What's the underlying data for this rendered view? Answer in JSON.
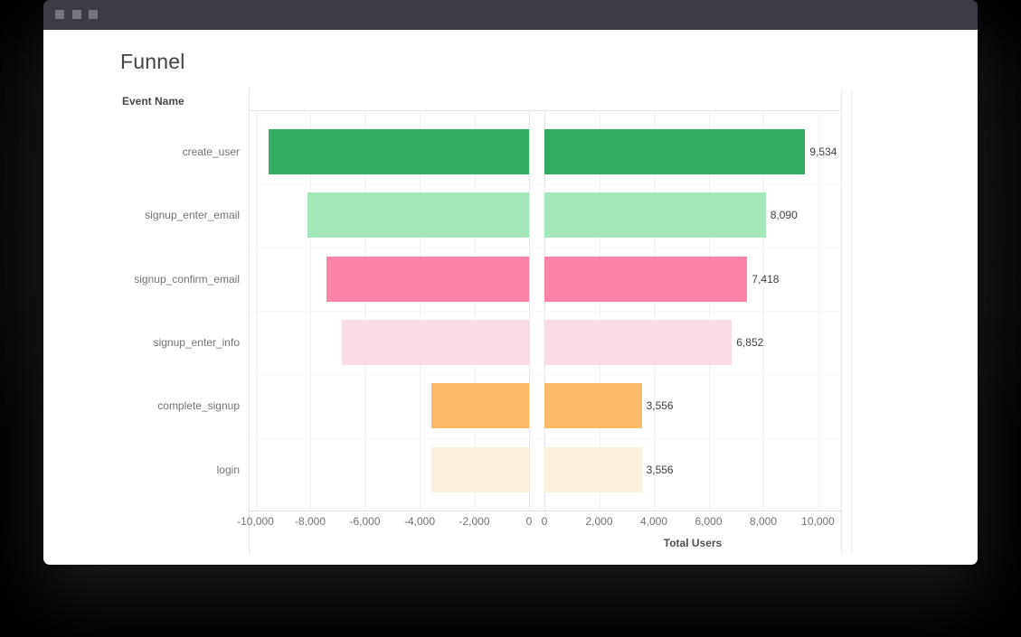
{
  "window": {
    "titlebar_color": "#3a3b44",
    "controls": [
      "window-control-1",
      "window-control-2",
      "window-control-3"
    ]
  },
  "page": {
    "title": "Funnel"
  },
  "chart": {
    "header_label": "Event Name",
    "x_axis_label": "Total Users",
    "left_axis_ticks": [
      "-10,000",
      "-8,000",
      "-6,000",
      "-4,000",
      "-2,000",
      "0"
    ],
    "right_axis_ticks": [
      "0",
      "2,000",
      "4,000",
      "6,000",
      "8,000",
      "10,000"
    ]
  },
  "chart_data": {
    "type": "bar",
    "orientation": "horizontal-mirrored-funnel",
    "title": "Funnel",
    "xlabel": "Total Users",
    "ylabel": "Event Name",
    "categories": [
      "create_user",
      "signup_enter_email",
      "signup_confirm_email",
      "signup_enter_info",
      "complete_signup",
      "login"
    ],
    "values": [
      9534,
      8090,
      7418,
      6852,
      3556,
      3556
    ],
    "value_labels": [
      "9,534",
      "8,090",
      "7,418",
      "6,852",
      "3,556",
      "3,556"
    ],
    "bar_colors": [
      "#33ab61",
      "#a2e8bb",
      "#fa82a6",
      "#f9dce6",
      "#fcba68",
      "#faf0dc"
    ],
    "left_panel_range": [
      -10000,
      0
    ],
    "right_panel_range": [
      0,
      10000
    ],
    "tick_step": 2000,
    "grid": true,
    "legend": false
  }
}
